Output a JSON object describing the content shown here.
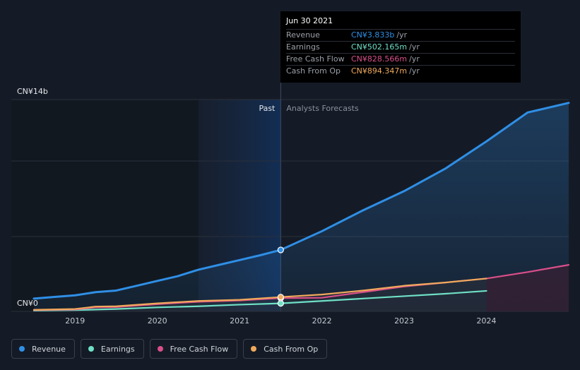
{
  "tooltip": {
    "date": "Jun 30 2021",
    "rows": [
      {
        "label": "Revenue",
        "value": "CN¥3.833b",
        "unit": "/yr",
        "color": "#2f8fe6"
      },
      {
        "label": "Earnings",
        "value": "CN¥502.165m",
        "unit": "/yr",
        "color": "#6fe0c6"
      },
      {
        "label": "Free Cash Flow",
        "value": "CN¥828.566m",
        "unit": "/yr",
        "color": "#d94f8a"
      },
      {
        "label": "Cash From Op",
        "value": "CN¥894.347m",
        "unit": "/yr",
        "color": "#f0a95c"
      }
    ]
  },
  "legend": [
    {
      "label": "Revenue",
      "color": "#2f8fe6"
    },
    {
      "label": "Earnings",
      "color": "#6fe0c6"
    },
    {
      "label": "Free Cash Flow",
      "color": "#d94f8a"
    },
    {
      "label": "Cash From Op",
      "color": "#f0a95c"
    }
  ],
  "chart_data": {
    "type": "line",
    "y_top_label": "CN¥14b",
    "y_bottom_label": "CN¥0",
    "ylim": [
      0,
      14
    ],
    "xlim": [
      2018.5,
      2025.0
    ],
    "x_ticks": [
      "2019",
      "2020",
      "2021",
      "2022",
      "2023",
      "2024"
    ],
    "x_tick_values": [
      2019,
      2020,
      2021,
      2022,
      2023,
      2024
    ],
    "past_label": "Past",
    "forecast_label": "Analysts Forecasts",
    "divider_x": 2021.5,
    "past_shade_start": 2020.5,
    "grid": true,
    "series": [
      {
        "name": "Revenue",
        "color": "#2f8fe6",
        "points": [
          [
            2018.5,
            0.8
          ],
          [
            2018.75,
            0.9
          ],
          [
            2019.0,
            1.0
          ],
          [
            2019.25,
            1.2
          ],
          [
            2019.5,
            1.3
          ],
          [
            2019.75,
            1.6
          ],
          [
            2020.0,
            1.9
          ],
          [
            2020.25,
            2.2
          ],
          [
            2020.5,
            2.6
          ],
          [
            2020.75,
            2.9
          ],
          [
            2021.0,
            3.2
          ],
          [
            2021.25,
            3.5
          ],
          [
            2021.5,
            3.833
          ],
          [
            2022.0,
            5.0
          ],
          [
            2022.5,
            6.3
          ],
          [
            2023.0,
            7.5
          ],
          [
            2023.5,
            8.9
          ],
          [
            2024.0,
            10.6
          ],
          [
            2024.5,
            12.4
          ],
          [
            2025.0,
            13.0
          ]
        ]
      },
      {
        "name": "Earnings",
        "color": "#6fe0c6",
        "points": [
          [
            2018.5,
            0.05
          ],
          [
            2019.0,
            0.08
          ],
          [
            2019.5,
            0.15
          ],
          [
            2020.0,
            0.25
          ],
          [
            2020.5,
            0.32
          ],
          [
            2021.0,
            0.42
          ],
          [
            2021.5,
            0.502
          ],
          [
            2022.0,
            0.65
          ],
          [
            2022.5,
            0.8
          ],
          [
            2023.0,
            0.95
          ],
          [
            2023.5,
            1.1
          ],
          [
            2024.0,
            1.28
          ]
        ]
      },
      {
        "name": "Free Cash Flow",
        "color": "#d94f8a",
        "points": [
          [
            2018.5,
            0.08
          ],
          [
            2019.0,
            0.12
          ],
          [
            2019.25,
            0.25
          ],
          [
            2019.5,
            0.27
          ],
          [
            2020.0,
            0.45
          ],
          [
            2020.5,
            0.6
          ],
          [
            2021.0,
            0.68
          ],
          [
            2021.5,
            0.829
          ],
          [
            2022.0,
            0.85
          ],
          [
            2022.5,
            1.2
          ],
          [
            2023.0,
            1.55
          ],
          [
            2023.5,
            1.8
          ],
          [
            2024.0,
            2.05
          ],
          [
            2024.5,
            2.45
          ],
          [
            2025.0,
            2.9
          ]
        ]
      },
      {
        "name": "Cash From Op",
        "color": "#f0a95c",
        "points": [
          [
            2018.5,
            0.1
          ],
          [
            2019.0,
            0.15
          ],
          [
            2019.25,
            0.3
          ],
          [
            2019.5,
            0.32
          ],
          [
            2020.0,
            0.5
          ],
          [
            2020.5,
            0.65
          ],
          [
            2021.0,
            0.72
          ],
          [
            2021.5,
            0.894
          ],
          [
            2022.0,
            1.05
          ],
          [
            2022.5,
            1.3
          ],
          [
            2023.0,
            1.6
          ],
          [
            2023.5,
            1.8
          ],
          [
            2024.0,
            2.05
          ]
        ]
      }
    ],
    "highlight_x": 2021.5
  }
}
